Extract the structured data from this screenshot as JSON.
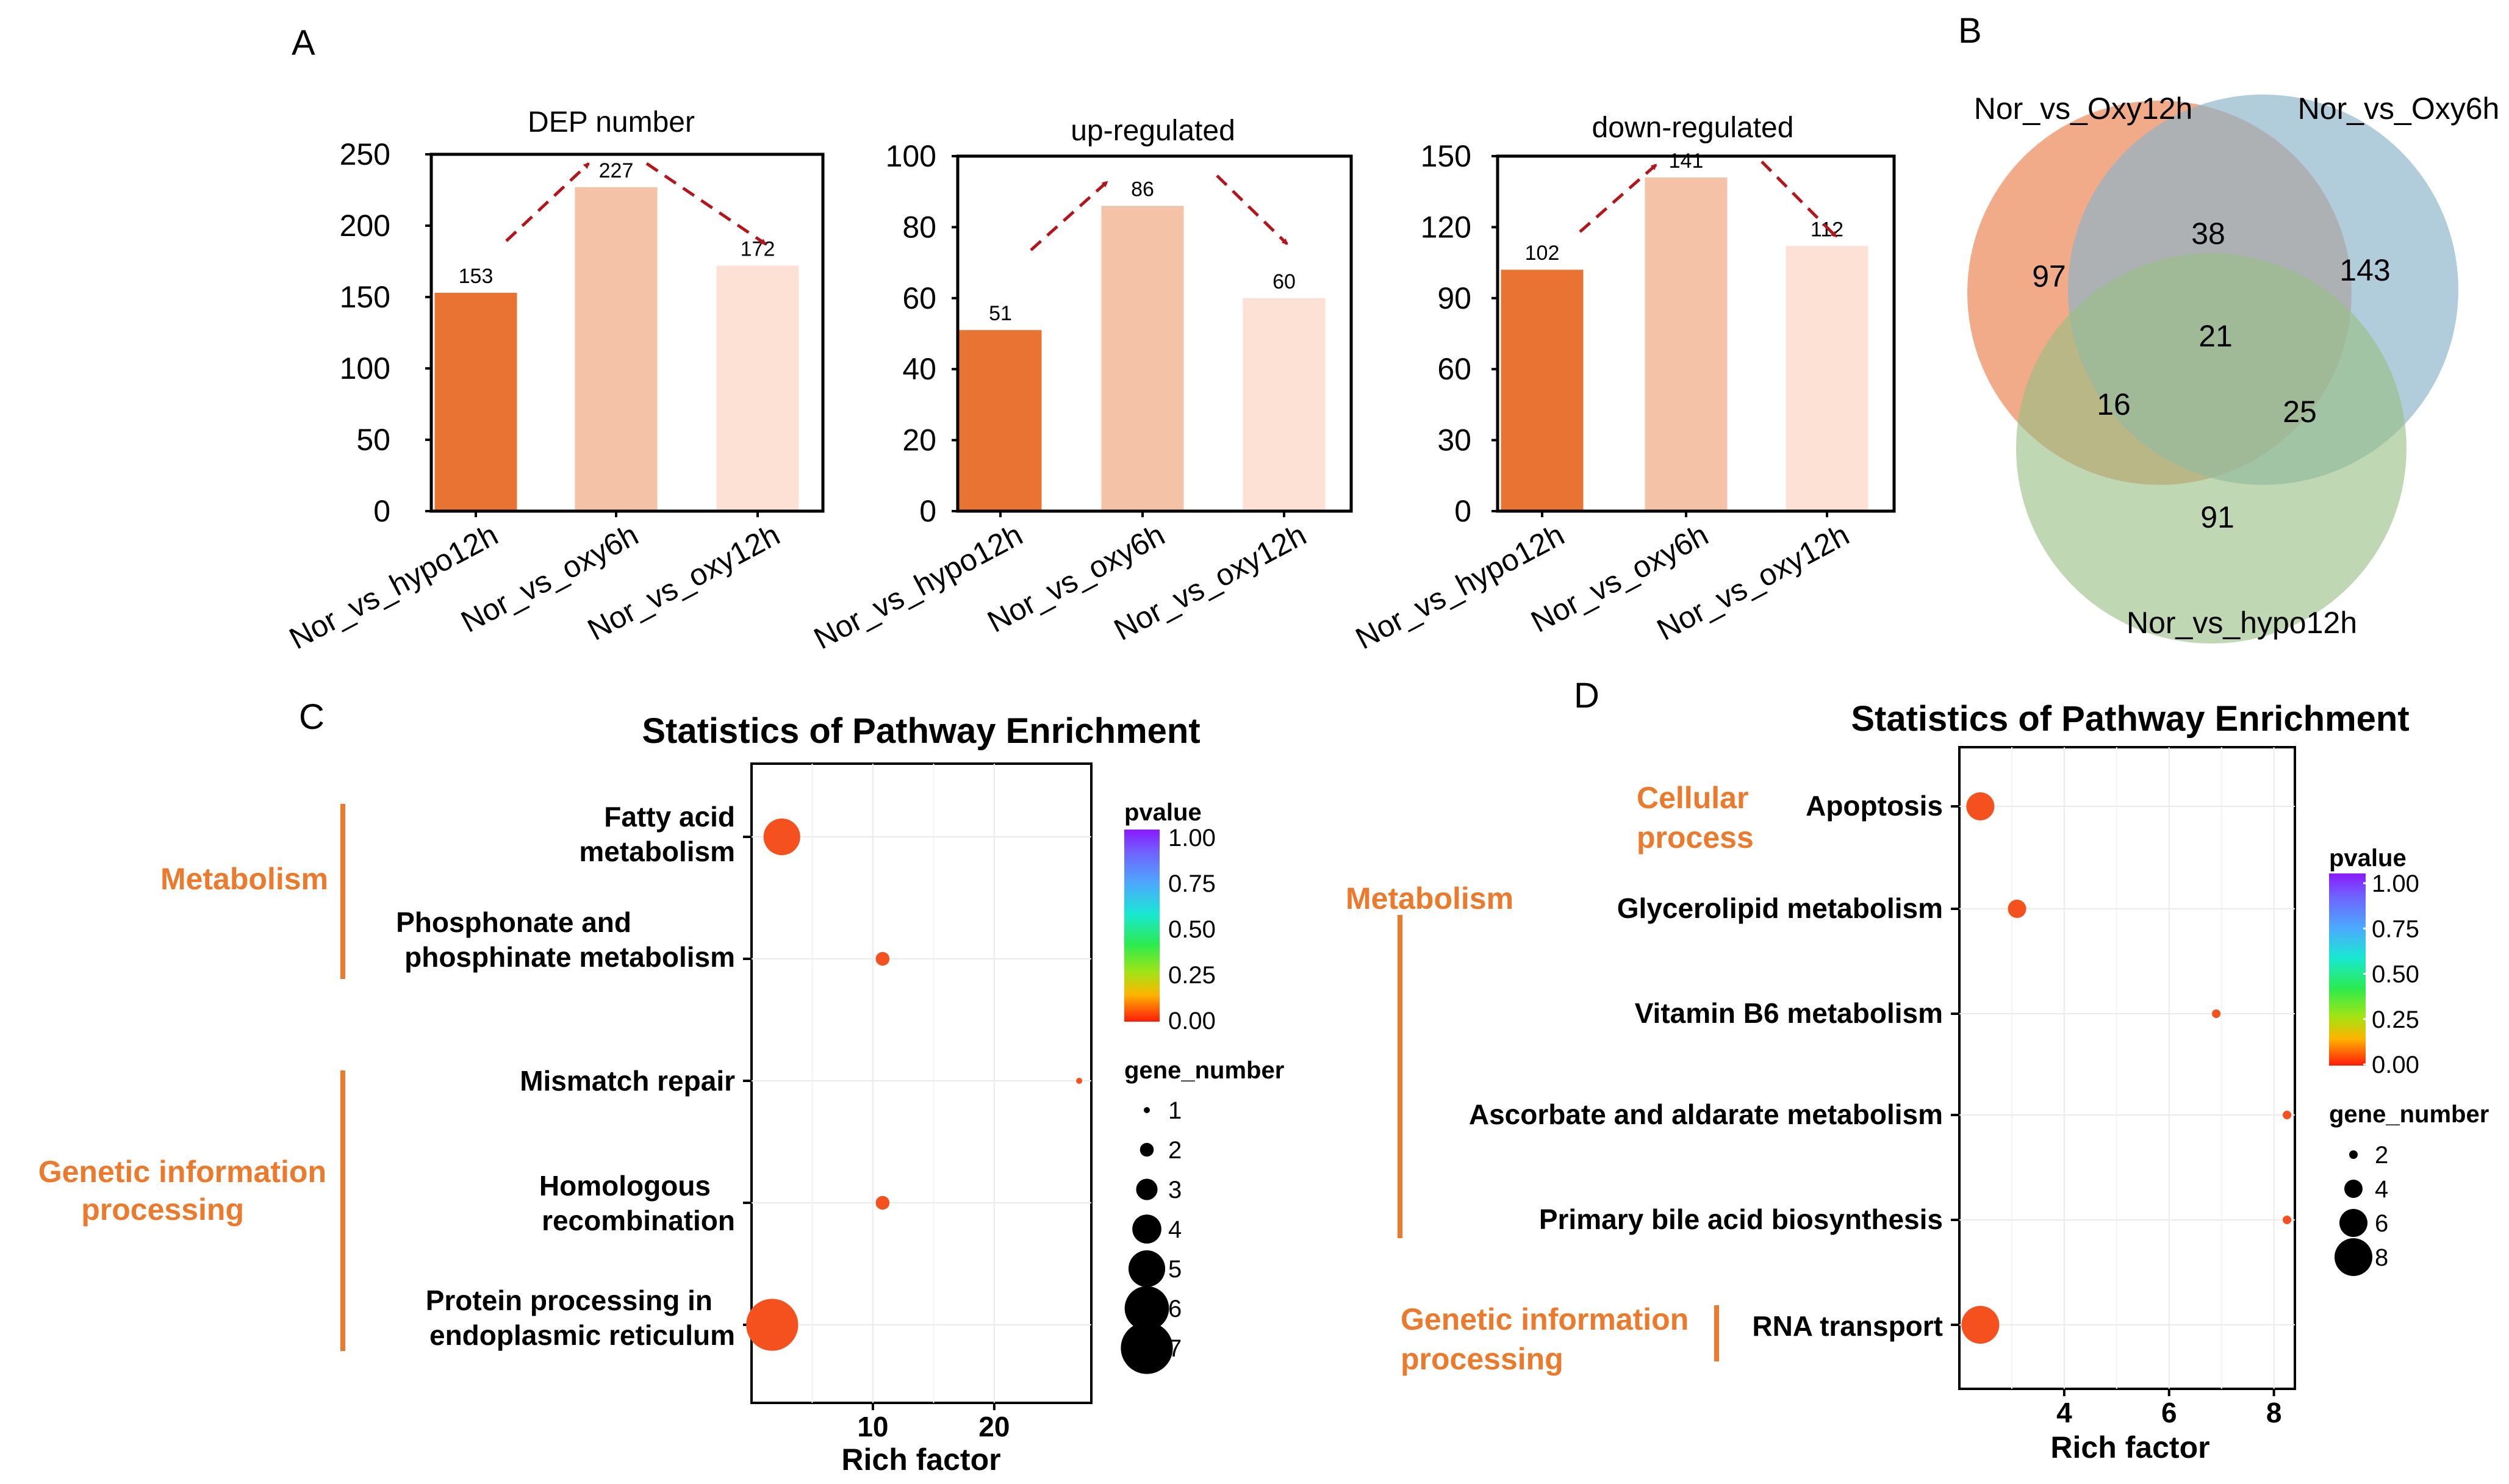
{
  "colors": {
    "bar1": "#E97332",
    "bar2": "#F4C2A6",
    "bar3": "#FCE1D4",
    "arrow": "#B4151B",
    "accent": "#EB7A2C",
    "dot": "#F4511E",
    "venn_a": "#EC8A5B",
    "venn_b": "#8CB4C8",
    "venn_c": "#98BF84"
  },
  "panel_labels": {
    "a": "A",
    "b": "B",
    "c": "C",
    "d": "D"
  },
  "chart_data": [
    {
      "type": "bar",
      "title": "DEP number",
      "categories": [
        "Nor_vs_hypo12h",
        "Nor_vs_oxy6h",
        "Nor_vs_oxy12h"
      ],
      "values": [
        153,
        227,
        172
      ],
      "ylim": [
        0,
        250
      ],
      "yticks": [
        0,
        50,
        100,
        150,
        200,
        250
      ],
      "xlabel": "",
      "ylabel": ""
    },
    {
      "type": "bar",
      "title": "up-regulated",
      "categories": [
        "Nor_vs_hypo12h",
        "Nor_vs_oxy6h",
        "Nor_vs_oxy12h"
      ],
      "values": [
        51,
        86,
        60
      ],
      "ylim": [
        0,
        100
      ],
      "yticks": [
        0,
        20,
        40,
        60,
        80,
        100
      ],
      "xlabel": "",
      "ylabel": ""
    },
    {
      "type": "bar",
      "title": "down-regulated",
      "categories": [
        "Nor_vs_hypo12h",
        "Nor_vs_oxy6h",
        "Nor_vs_oxy12h"
      ],
      "values": [
        102,
        141,
        112
      ],
      "ylim": [
        0,
        150
      ],
      "yticks": [
        0,
        30,
        60,
        90,
        120,
        150
      ],
      "xlabel": "",
      "ylabel": ""
    },
    {
      "type": "venn",
      "sets": [
        "Nor_vs_Oxy12h",
        "Nor_vs_Oxy6h",
        "Nor_vs_hypo12h"
      ],
      "regions": {
        "oxy12h_only": 97,
        "oxy12h_oxy6h": 38,
        "oxy6h_only": 143,
        "all_three": 21,
        "oxy12h_hypo12h": 16,
        "oxy6h_hypo12h": 25,
        "hypo12h_only": 91
      }
    },
    {
      "type": "scatter",
      "title": "Statistics of Pathway Enrichment",
      "xlabel": "Rich factor",
      "xlim": [
        0,
        28
      ],
      "xticks": [
        10,
        20
      ],
      "categories": [
        "Fatty acid metabolism",
        "Phosphonate and phosphinate metabolism",
        "Mismatch repair",
        "Homologous recombination",
        "Protein processing in endoplasmic reticulum"
      ],
      "points": [
        {
          "category": "Fatty acid metabolism",
          "x": 2.5,
          "gene_number": 5,
          "pvalue": 0.0
        },
        {
          "category": "Phosphonate and phosphinate metabolism",
          "x": 10.8,
          "gene_number": 2,
          "pvalue": 0.0
        },
        {
          "category": "Mismatch repair",
          "x": 27.0,
          "gene_number": 1,
          "pvalue": 0.0
        },
        {
          "category": "Homologous recombination",
          "x": 10.8,
          "gene_number": 2,
          "pvalue": 0.0
        },
        {
          "category": "Protein processing in endoplasmic reticulum",
          "x": 1.7,
          "gene_number": 7,
          "pvalue": 0.0
        }
      ],
      "legend": {
        "color_title": "pvalue",
        "color_ticks": [
          "1.00",
          "0.75",
          "0.50",
          "0.25",
          "0.00"
        ],
        "size_title": "gene_number",
        "size_values": [
          1,
          2,
          3,
          4,
          5,
          6,
          7
        ]
      },
      "groups": [
        "Metabolism",
        "Genetic information processing"
      ]
    },
    {
      "type": "scatter",
      "title": "Statistics of Pathway Enrichment",
      "xlabel": "Rich factor",
      "xlim": [
        2.0,
        8.4
      ],
      "xticks": [
        4,
        6,
        8
      ],
      "categories": [
        "Apoptosis",
        "Glycerolipid metabolism",
        "Vitamin B6 metabolism",
        "Ascorbate and aldarate metabolism",
        "Primary bile acid biosynthesis",
        "RNA transport"
      ],
      "points": [
        {
          "category": "Apoptosis",
          "x": 2.4,
          "gene_number": 6,
          "pvalue": 0.0
        },
        {
          "category": "Glycerolipid metabolism",
          "x": 3.1,
          "gene_number": 4,
          "pvalue": 0.0
        },
        {
          "category": "Vitamin B6 metabolism",
          "x": 6.9,
          "gene_number": 2,
          "pvalue": 0.0
        },
        {
          "category": "Ascorbate and aldarate metabolism",
          "x": 8.25,
          "gene_number": 2,
          "pvalue": 0.0
        },
        {
          "category": "Primary bile acid biosynthesis",
          "x": 8.25,
          "gene_number": 2,
          "pvalue": 0.0
        },
        {
          "category": "RNA transport",
          "x": 2.4,
          "gene_number": 8,
          "pvalue": 0.0
        }
      ],
      "legend": {
        "color_title": "pvalue",
        "color_ticks": [
          "1.00",
          "0.75",
          "0.50",
          "0.25",
          "0.00"
        ],
        "size_title": "gene_number",
        "size_values": [
          2,
          4,
          6,
          8
        ]
      },
      "groups": [
        "Cellular process",
        "Metabolism",
        "Genetic information processing"
      ]
    }
  ]
}
